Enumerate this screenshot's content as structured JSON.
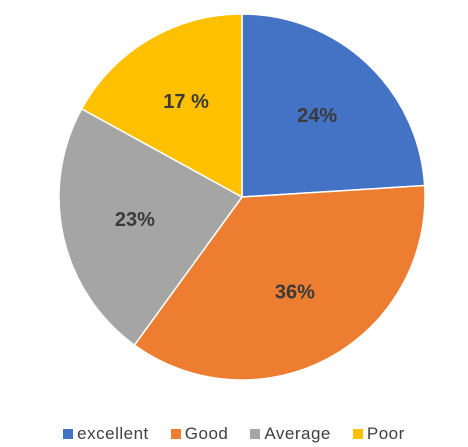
{
  "chart_data": {
    "type": "pie",
    "title": "",
    "legend_position": "bottom",
    "slices": [
      {
        "name": "excellent",
        "value": 24,
        "label": "24%",
        "color": "#4472C4"
      },
      {
        "name": "Good",
        "value": 36,
        "label": "36%",
        "color": "#ED7D31"
      },
      {
        "name": "Average",
        "value": 23,
        "label": "23%",
        "color": "#A5A5A5"
      },
      {
        "name": "Poor",
        "value": 17,
        "label": "17 %",
        "color": "#FFC000"
      }
    ]
  }
}
